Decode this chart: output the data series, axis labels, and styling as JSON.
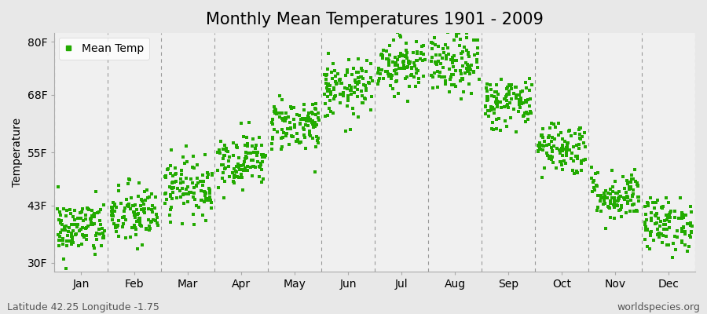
{
  "title": "Monthly Mean Temperatures 1901 - 2009",
  "ylabel": "Temperature",
  "xlabel_months": [
    "Jan",
    "Feb",
    "Mar",
    "Apr",
    "May",
    "Jun",
    "Jul",
    "Aug",
    "Sep",
    "Oct",
    "Nov",
    "Dec"
  ],
  "yticks": [
    30,
    43,
    55,
    68,
    80
  ],
  "ytick_labels": [
    "30F",
    "43F",
    "55F",
    "68F",
    "80F"
  ],
  "ylim": [
    28,
    82
  ],
  "dot_color": "#22AA00",
  "dot_size": 5,
  "background_color": "#E8E8E8",
  "plot_bg_color": "#F0F0F0",
  "legend_label": "Mean Temp",
  "footnote_left": "Latitude 42.25 Longitude -1.75",
  "footnote_right": "worldspecies.org",
  "title_fontsize": 15,
  "axis_fontsize": 10,
  "tick_fontsize": 10,
  "footnote_fontsize": 9,
  "mean_temps_F": [
    37.0,
    40.0,
    46.5,
    52.5,
    60.5,
    68.5,
    74.5,
    74.0,
    65.5,
    55.5,
    44.5,
    38.0
  ],
  "std_temps_F": [
    3.2,
    3.5,
    3.2,
    3.0,
    3.0,
    3.2,
    3.2,
    3.5,
    3.0,
    3.0,
    2.8,
    3.0
  ],
  "trend_per_century": [
    1.5,
    1.5,
    1.5,
    1.5,
    1.5,
    1.5,
    1.5,
    1.5,
    1.5,
    1.5,
    1.5,
    1.5
  ],
  "n_years": 109,
  "seed": 42
}
